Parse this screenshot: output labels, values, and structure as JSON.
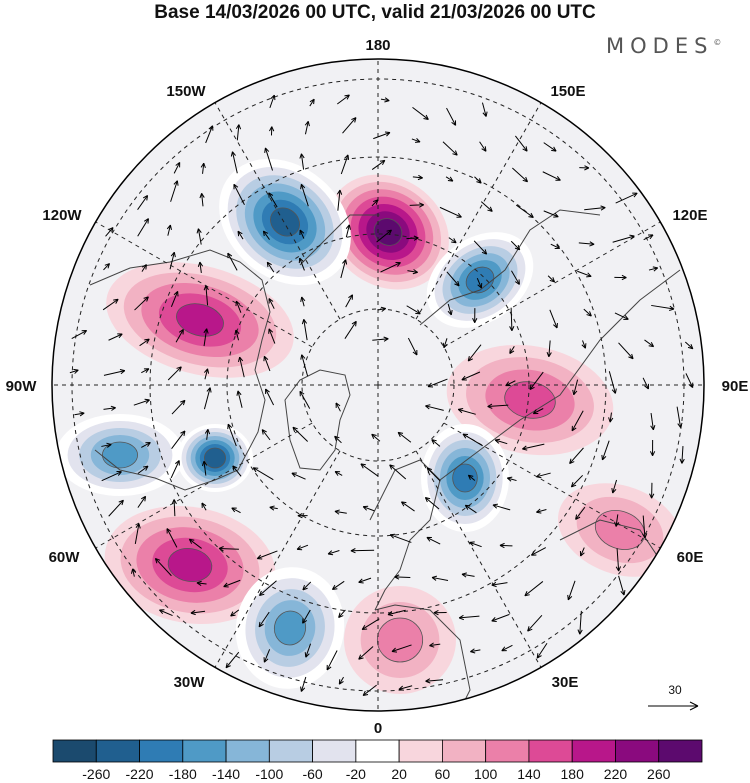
{
  "header": {
    "title": "Base 14/03/2026 00 UTC, valid 21/03/2026 00 UTC",
    "brand": "MODES",
    "brand_mark": "©"
  },
  "map": {
    "projection": "north-polar-stereographic",
    "longitude_labels": [
      "180",
      "150E",
      "120E",
      "90E",
      "60E",
      "30E",
      "0",
      "30W",
      "60W",
      "90W",
      "120W",
      "150W"
    ],
    "reference_vector": {
      "value": "30"
    },
    "anomaly_centers": [
      {
        "name": "pos-west-pacific-bering",
        "sign": "+",
        "value": 240
      },
      {
        "name": "neg-gulf-alaska",
        "sign": "-",
        "value": -220
      },
      {
        "name": "neg-east-siberia",
        "sign": "-",
        "value": -200
      },
      {
        "name": "pos-western-canada",
        "sign": "+",
        "value": 160
      },
      {
        "name": "pos-central-siberia",
        "sign": "+",
        "value": 120
      },
      {
        "name": "neg-east-north-america",
        "sign": "-",
        "value": -140
      },
      {
        "name": "neg-hudson-labrador",
        "sign": "-",
        "value": -220
      },
      {
        "name": "neg-western-russia",
        "sign": "-",
        "value": -180
      },
      {
        "name": "pos-mid-atlantic",
        "sign": "+",
        "value": 160
      },
      {
        "name": "neg-east-atlantic",
        "sign": "-",
        "value": -140
      },
      {
        "name": "pos-mediterranean",
        "sign": "+",
        "value": 80
      },
      {
        "name": "pos-central-asia",
        "sign": "+",
        "value": 60
      }
    ]
  },
  "colorbar": {
    "tick_labels": [
      "-260",
      "-220",
      "-180",
      "-140",
      "-100",
      "-60",
      "-20",
      "20",
      "60",
      "100",
      "140",
      "180",
      "220",
      "260"
    ],
    "colors": [
      "#1b4a6e",
      "#205f8f",
      "#2f7cb4",
      "#4f9ac6",
      "#86b6d8",
      "#b8cde3",
      "#e2e3ee",
      "#ffffff",
      "#f8d6dd",
      "#f2b2c3",
      "#eb80a9",
      "#dd4a96",
      "#b8178a",
      "#8a0a7e",
      "#5c0a6e"
    ]
  }
}
